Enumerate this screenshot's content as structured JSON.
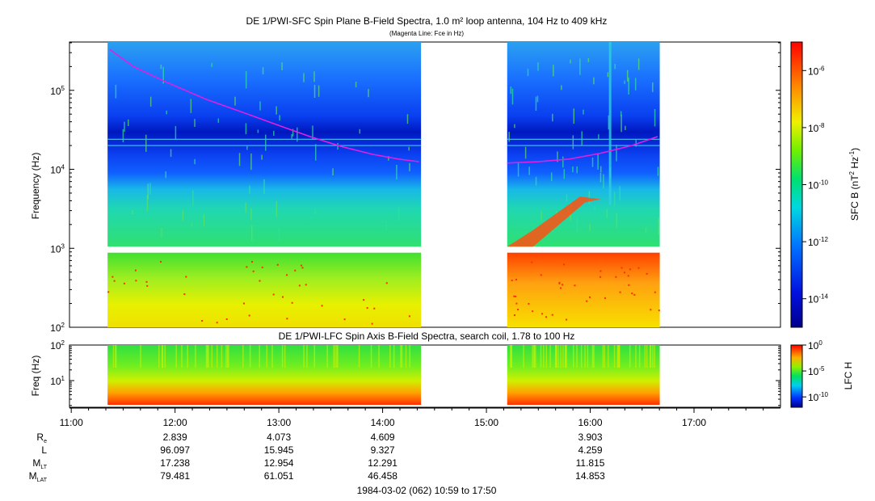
{
  "chart_data": [
    {
      "type": "heatmap",
      "title": "DE 1/PWI-SFC  Spin Plane B-Field Spectra, 1.0 m² loop antenna, 104 Hz to 409 kHz",
      "subtitle": "(Magenta Line: Fce in Hz)",
      "ylabel": "Frequency (Hz)",
      "yscale": "log",
      "ylim": [
        100,
        409000
      ],
      "yticks": [
        {
          "value": 100,
          "base": "10",
          "exp": "2"
        },
        {
          "value": 1000,
          "base": "10",
          "exp": "3"
        },
        {
          "value": 10000,
          "base": "10",
          "exp": "4"
        },
        {
          "value": 100000,
          "base": "10",
          "exp": "5"
        }
      ],
      "colorbar": {
        "label": "SFC B (nT",
        "label_exp1": "2",
        "label_mid": " Hz",
        "label_exp2": "-1",
        "label_end": ")",
        "scale": "log",
        "range": [
          1e-15,
          1e-05
        ],
        "ticks": [
          {
            "value": 1e-06,
            "base": "10",
            "exp": "-6"
          },
          {
            "value": 1e-08,
            "base": "10",
            "exp": "-8"
          },
          {
            "value": 1e-10,
            "base": "10",
            "exp": "-10"
          },
          {
            "value": 1e-12,
            "base": "10",
            "exp": "-12"
          },
          {
            "value": 1e-14,
            "base": "10",
            "exp": "-14"
          }
        ]
      },
      "data_segments_hours": [
        [
          11.35,
          14.37
        ],
        [
          15.2,
          16.67
        ]
      ],
      "fce_line": {
        "color": "#e020e0",
        "segments": [
          [
            [
              11.37,
              330000
            ],
            [
              11.6,
              200000
            ],
            [
              11.9,
              130000
            ],
            [
              12.3,
              77000
            ],
            [
              12.7,
              50000
            ],
            [
              13.0,
              36000
            ],
            [
              13.3,
              26000
            ],
            [
              13.6,
              19500
            ],
            [
              13.9,
              15500
            ],
            [
              14.15,
              13500
            ],
            [
              14.35,
              12500
            ]
          ],
          [
            [
              15.2,
              12000
            ],
            [
              15.5,
              12500
            ],
            [
              15.8,
              13500
            ],
            [
              16.1,
              16000
            ],
            [
              16.4,
              20000
            ],
            [
              16.65,
              26000
            ]
          ]
        ]
      }
    },
    {
      "type": "heatmap",
      "title": "DE 1/PWI-LFC  Spin Axis B-Field Spectra, search coil, 1.78 to 100 Hz",
      "ylabel": "Freq (Hz)",
      "yscale": "log",
      "ylim": [
        1.78,
        100
      ],
      "yticks": [
        {
          "value": 10,
          "base": "10",
          "exp": "1"
        },
        {
          "value": 100,
          "base": "10",
          "exp": "2"
        }
      ],
      "colorbar": {
        "label": "LFC H",
        "scale": "log",
        "range": [
          1e-12,
          1
        ],
        "ticks": [
          {
            "value": 1,
            "base": "10",
            "exp": "0"
          },
          {
            "value": 1e-05,
            "base": "10",
            "exp": "-5"
          },
          {
            "value": 1e-10,
            "base": "10",
            "exp": "-10"
          }
        ]
      },
      "data_segments_hours": [
        [
          11.35,
          14.37
        ],
        [
          15.2,
          16.67
        ]
      ]
    }
  ],
  "time_axis": {
    "range_hours": [
      10.983,
      17.833
    ],
    "ticks": [
      {
        "hour": 11,
        "label": "11:00"
      },
      {
        "hour": 12,
        "label": "12:00"
      },
      {
        "hour": 13,
        "label": "13:00"
      },
      {
        "hour": 14,
        "label": "14:00"
      },
      {
        "hour": 15,
        "label": "15:00"
      },
      {
        "hour": 16,
        "label": "16:00"
      },
      {
        "hour": 17,
        "label": "17:00"
      }
    ],
    "footer": "1984-03-02 (062) 10:59 to 17:50"
  },
  "ephemeris": {
    "columns_hours": [
      12,
      13,
      14,
      16
    ],
    "rows": [
      {
        "label": "R",
        "sub": "e",
        "values": [
          "2.839",
          "4.073",
          "4.609",
          "3.903"
        ]
      },
      {
        "label": "L",
        "sub": "",
        "values": [
          "96.097",
          "15.945",
          "9.327",
          "4.259"
        ]
      },
      {
        "label": "M",
        "sub": "LT",
        "values": [
          "17.238",
          "12.954",
          "12.291",
          "11.815"
        ]
      },
      {
        "label": "M",
        "sub": "LAT",
        "values": [
          "79.481",
          "61.051",
          "46.458",
          "14.853"
        ]
      }
    ]
  }
}
